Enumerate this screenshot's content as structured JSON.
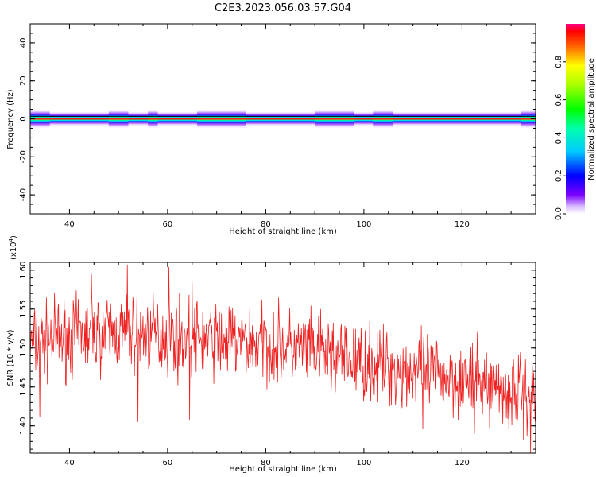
{
  "title": "C2E3.2023.056.03.57.G04",
  "colors": {
    "snr_line": "#ee2222",
    "axis": "#000000",
    "spectrogram_background": "#ffffff"
  },
  "chart_data": [
    {
      "type": "heatmap",
      "name": "spectrogram",
      "xlabel": "Height of straight line (km)",
      "ylabel": "Frequency (Hz)",
      "xlim": [
        32,
        135
      ],
      "ylim": [
        -50,
        50
      ],
      "x_ticks": [
        40,
        60,
        80,
        100,
        120
      ],
      "x_tick_labels": [
        "40",
        "60",
        "80",
        "100",
        "120"
      ],
      "y_ticks": [
        -40,
        -20,
        0,
        20,
        40
      ],
      "y_tick_labels": [
        "-40",
        "-20",
        "0",
        "20",
        "40"
      ],
      "colorbar": {
        "label": "Normalized spectral amplitude",
        "range": [
          0,
          1
        ],
        "ticks": [
          0.0,
          0.2,
          0.4,
          0.6,
          0.8
        ],
        "tick_labels": [
          "0.0",
          "0.2",
          "0.4",
          "0.6",
          "0.8"
        ],
        "colormap": "hsv-rainbow",
        "position": "right"
      },
      "signal_band": {
        "center_frequency": 0,
        "core_halfwidth_hz": 1,
        "halo_halfwidth_hz": 4,
        "wide_segments_km": [
          [
            32,
            36
          ],
          [
            48,
            52
          ],
          [
            56,
            58
          ],
          [
            66,
            76
          ],
          [
            90,
            98
          ],
          [
            102,
            106
          ],
          [
            132,
            135
          ]
        ]
      },
      "grid": false
    },
    {
      "type": "line",
      "name": "snr",
      "xlabel": "Height of straight line (km)",
      "ylabel": "SNR (10 * v/v)",
      "yscale_note": "(x10",
      "yscale_exponent": "4",
      "xlim": [
        32,
        135
      ],
      "ylim": [
        1.365,
        1.61
      ],
      "x_ticks": [
        40,
        60,
        80,
        100,
        120
      ],
      "x_tick_labels": [
        "40",
        "60",
        "80",
        "100",
        "120"
      ],
      "y_ticks": [
        1.4,
        1.45,
        1.5,
        1.55,
        1.6
      ],
      "y_tick_labels": [
        "1.40",
        "1.45",
        "1.50",
        "1.55",
        "1.60"
      ],
      "grid": false,
      "trend": {
        "x": [
          32,
          40,
          50,
          60,
          70,
          80,
          90,
          100,
          110,
          120,
          135
        ],
        "y": [
          1.505,
          1.515,
          1.52,
          1.515,
          1.51,
          1.505,
          1.495,
          1.48,
          1.47,
          1.46,
          1.44
        ]
      },
      "noise_amplitude": 0.03,
      "noise_seed": 7,
      "samples": 1000,
      "peaks": [
        {
          "x": 44.5,
          "y": 1.595
        },
        {
          "x": 51.8,
          "y": 1.607
        },
        {
          "x": 60.2,
          "y": 1.604
        },
        {
          "x": 65.0,
          "y": 1.585
        }
      ],
      "troughs": [
        {
          "x": 34.0,
          "y": 1.412
        },
        {
          "x": 54.0,
          "y": 1.405
        },
        {
          "x": 64.5,
          "y": 1.408
        },
        {
          "x": 112.0,
          "y": 1.396
        },
        {
          "x": 122.5,
          "y": 1.39
        },
        {
          "x": 129.5,
          "y": 1.395
        },
        {
          "x": 132.5,
          "y": 1.382
        },
        {
          "x": 134.0,
          "y": 1.365
        }
      ]
    }
  ]
}
